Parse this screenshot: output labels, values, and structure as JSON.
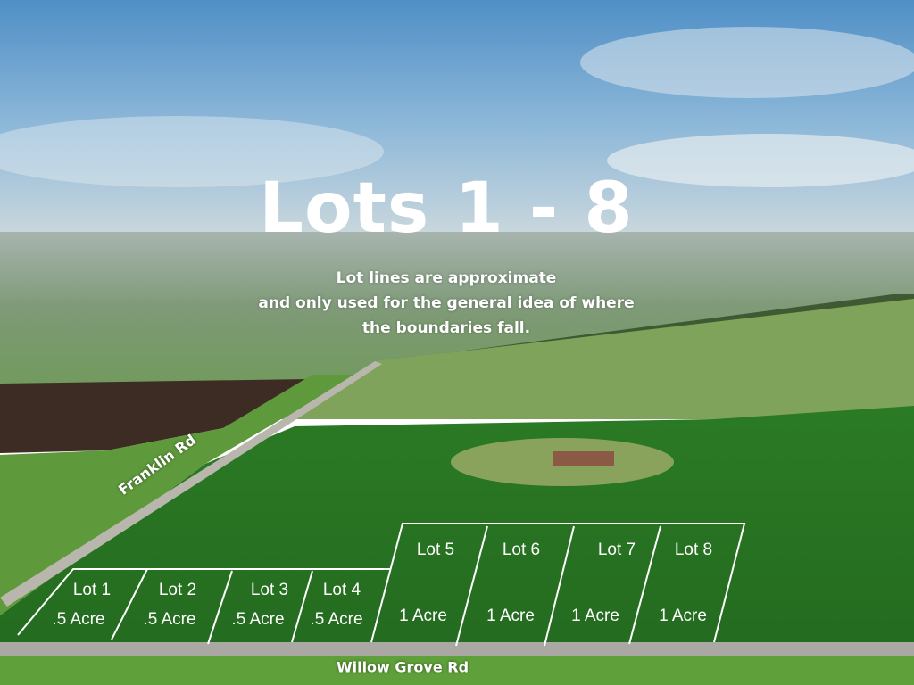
{
  "title": "Lots 1 - 8",
  "disclaimer": {
    "line1": "Lot lines are approximate",
    "line2": "and only used for the general idea  of where",
    "line3": "the boundaries fall."
  },
  "roads": {
    "franklin": "Franklin Rd",
    "willow_grove": "Willow Grove Rd"
  },
  "lots": [
    {
      "name": "Lot 1",
      "size": ".5 Acre"
    },
    {
      "name": "Lot 2",
      "size": ".5 Acre"
    },
    {
      "name": "Lot 3",
      "size": ".5 Acre"
    },
    {
      "name": "Lot 4",
      "size": ".5 Acre"
    },
    {
      "name": "Lot 5",
      "size": "1 Acre"
    },
    {
      "name": "Lot 6",
      "size": "1 Acre"
    },
    {
      "name": "Lot 7",
      "size": "1 Acre"
    },
    {
      "name": "Lot 8",
      "size": "1 Acre"
    }
  ],
  "colors": {
    "lot_lines": "#ffffff",
    "field": "#2f7a25",
    "sky": "#5f9ccb"
  }
}
